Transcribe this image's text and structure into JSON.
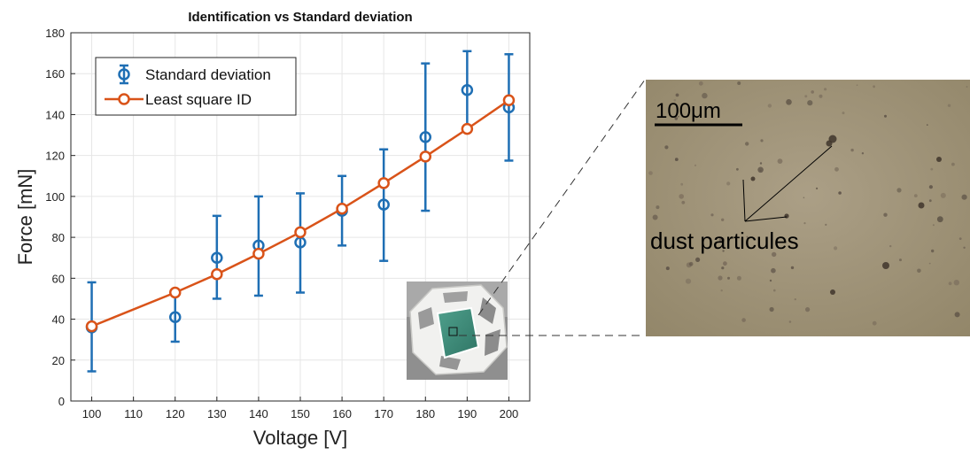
{
  "chart_data": {
    "type": "scatter",
    "title": "Identification vs Standard deviation",
    "xlabel": "Voltage [V]",
    "ylabel": "Force [mN]",
    "xlim": [
      95,
      205
    ],
    "ylim": [
      0,
      180
    ],
    "xticks": [
      100,
      110,
      120,
      130,
      140,
      150,
      160,
      170,
      180,
      190,
      200
    ],
    "yticks": [
      0,
      20,
      40,
      60,
      80,
      100,
      120,
      140,
      160,
      180
    ],
    "grid": true,
    "legend_position": "top-left",
    "series": [
      {
        "name": "Standard deviation",
        "kind": "errorbar",
        "color": "#1f6fb4",
        "x": [
          100,
          120,
          130,
          140,
          150,
          160,
          170,
          180,
          190,
          200
        ],
        "y": [
          36,
          41,
          70,
          76,
          77.5,
          93,
          96,
          129,
          152,
          143.5
        ],
        "y_low": [
          14.5,
          29,
          50,
          51.5,
          53,
          76,
          68.5,
          93,
          133,
          117.5
        ],
        "y_high": [
          58,
          53,
          90.5,
          100,
          101.5,
          110,
          123,
          165,
          171,
          169.5
        ]
      },
      {
        "name": "Least square ID",
        "kind": "line",
        "color": "#d95319",
        "x": [
          100,
          120,
          130,
          140,
          150,
          160,
          170,
          180,
          190,
          200
        ],
        "y": [
          36.5,
          53,
          62,
          72,
          82.5,
          94,
          106.5,
          119.5,
          133,
          147
        ]
      }
    ]
  },
  "inset": {
    "scale_label": "100μm",
    "annotation": "dust particules",
    "photo_background": "#a09478",
    "device_face_color": "#3a8a78"
  }
}
